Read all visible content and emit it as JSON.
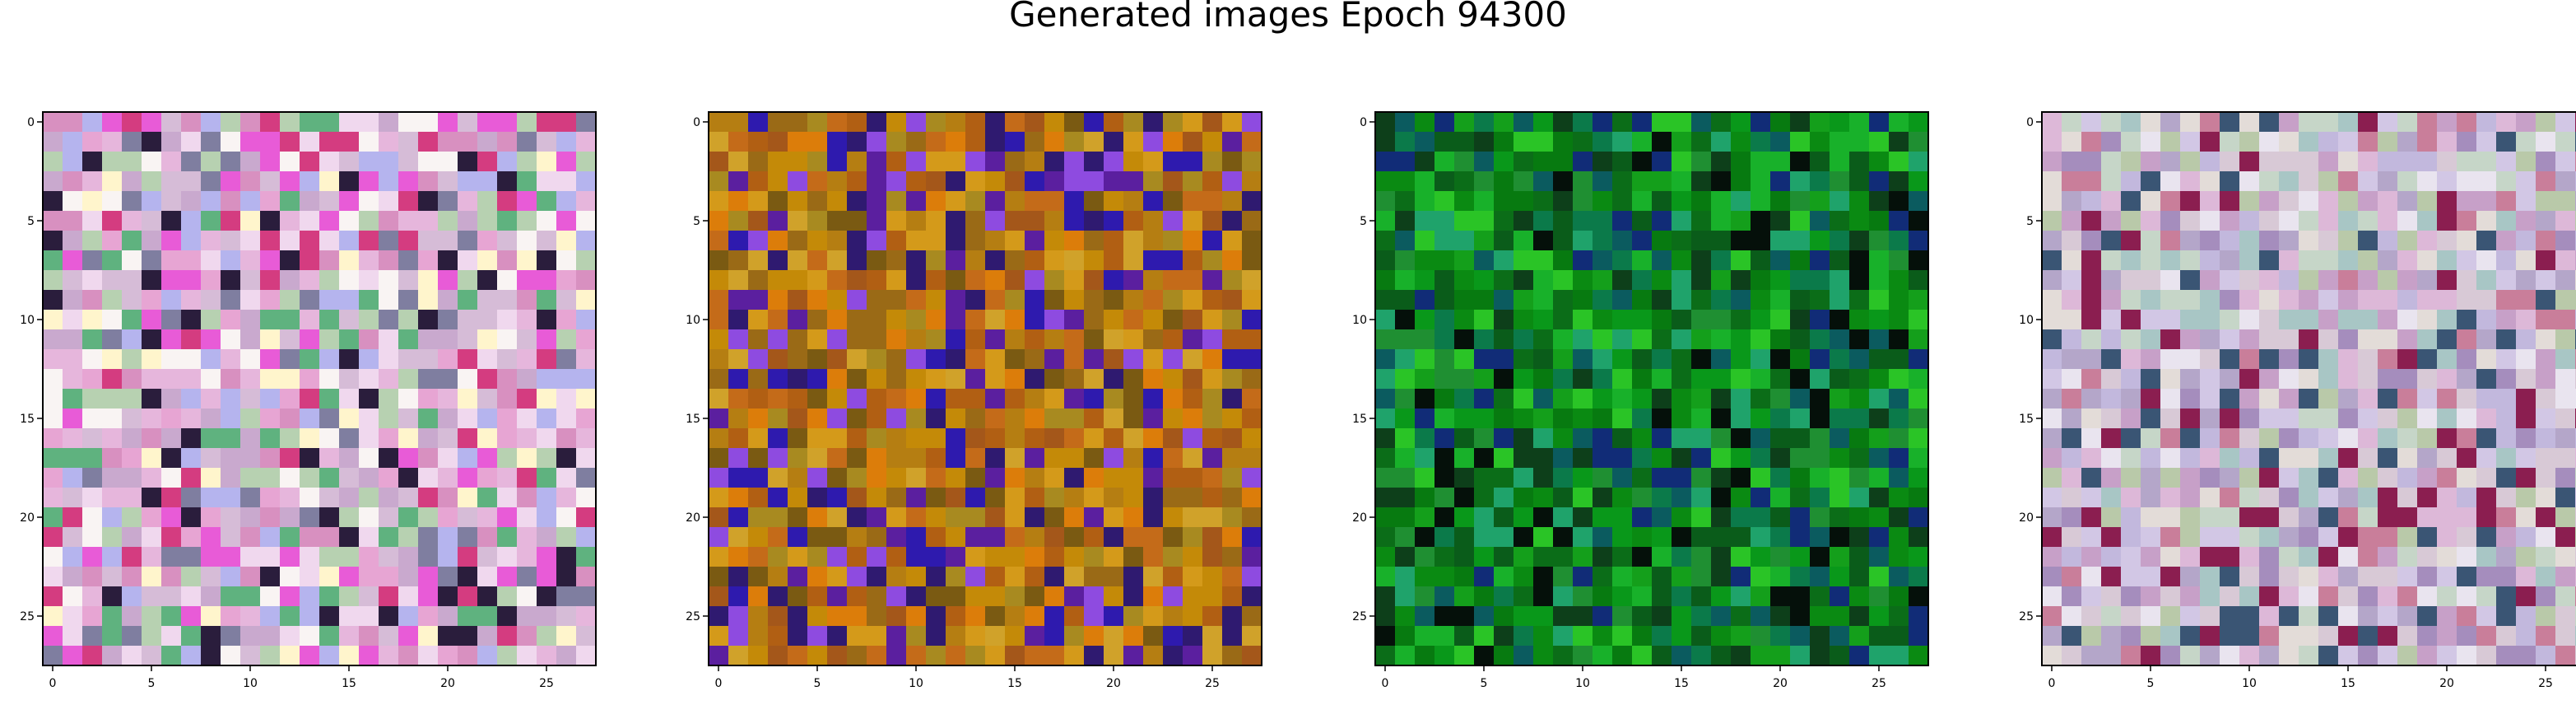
{
  "figure": {
    "title": "Generated images Epoch 94300"
  },
  "panels": [
    {
      "name": "image-1",
      "palette": [
        "#e6b6dc",
        "#d6bcd7",
        "#f0d8ee",
        "#e7a5d3",
        "#c9a9ce",
        "#f9f4f3",
        "#b7d1b1",
        "#d890c0",
        "#e85bd7",
        "#b5b4ee",
        "#5fb27f",
        "#7f7ea0",
        "#d43c80",
        "#fff5cc",
        "#2a1d3c"
      ],
      "seed": 11
    },
    {
      "name": "image-2",
      "palette": [
        "#c48a08",
        "#b57e12",
        "#d49a1a",
        "#a88a20",
        "#9a6a16",
        "#d0a22a",
        "#7a5a12",
        "#c46b19",
        "#5b1f9f",
        "#2e1aae",
        "#8e4be0",
        "#a4571a",
        "#2f1a70",
        "#dc7d0a",
        "#b15f13"
      ],
      "seed": 23
    },
    {
      "name": "image-3",
      "palette": [
        "#0a8a12",
        "#077a10",
        "#149f1b",
        "#0b6d18",
        "#18b12a",
        "#0a5c1a",
        "#1f8f32",
        "#0d3f1a",
        "#0b7a4a",
        "#09981a",
        "#1fa36b",
        "#112c77",
        "#05100a",
        "#2ac426",
        "#0b5b5f"
      ],
      "seed": 37
    },
    {
      "name": "image-4",
      "palette": [
        "#d8c9d6",
        "#c6d6c8",
        "#ddb8d8",
        "#a8c6c5",
        "#e3dcd8",
        "#c2b8dd",
        "#d2c7e5",
        "#b4a6c9",
        "#b9c9a9",
        "#c7a0c8",
        "#e9e4ef",
        "#a58dbd",
        "#8b1e50",
        "#c97e9a",
        "#3a5574"
      ],
      "seed": 51
    }
  ],
  "axes": {
    "ticks": [
      "0",
      "5",
      "10",
      "15",
      "20",
      "25"
    ]
  }
}
